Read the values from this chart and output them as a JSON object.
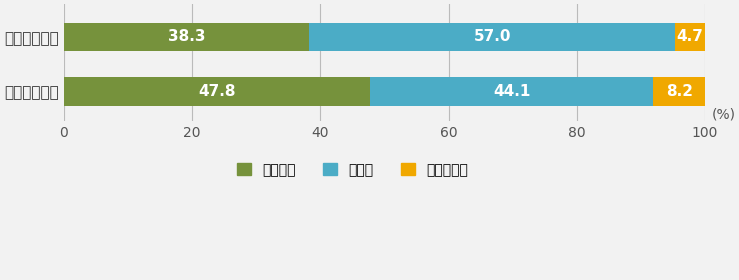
{
  "categories": [
    "在宅勤務あり",
    "在宅勤務なし"
  ],
  "series": [
    {
      "label": "なかった",
      "values": [
        38.3,
        47.8
      ],
      "color": "#76923c"
    },
    {
      "label": "あった",
      "values": [
        57.0,
        44.1
      ],
      "color": "#4bacc6"
    },
    {
      "label": "わからない",
      "values": [
        4.7,
        8.2
      ],
      "color": "#f0a800"
    }
  ],
  "xlim": [
    0,
    100
  ],
  "xticks": [
    0,
    20,
    40,
    60,
    80,
    100
  ],
  "xlabel_unit": "(%)",
  "bar_height": 0.52,
  "background_color": "#f2f2f2",
  "text_color": "#ffffff",
  "label_fontsize": 11,
  "tick_fontsize": 10,
  "legend_fontsize": 10,
  "category_fontsize": 11
}
